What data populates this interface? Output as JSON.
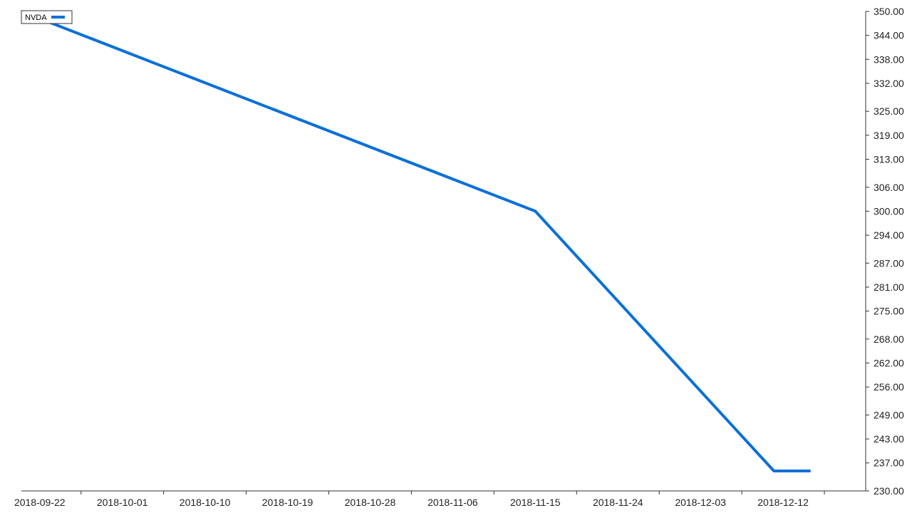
{
  "chart_data": {
    "type": "line",
    "series": [
      {
        "name": "NVDA",
        "color": "#0a70d8",
        "points": [
          {
            "x": "2018-09-20",
            "y": 350.0
          },
          {
            "x": "2018-11-15",
            "y": 300.0
          },
          {
            "x": "2018-12-11",
            "y": 235.0
          },
          {
            "x": "2018-12-15",
            "y": 235.0
          }
        ]
      }
    ],
    "x_range": [
      "2018-09-20",
      "2018-12-21"
    ],
    "x_ticks": [
      "2018-09-22",
      "2018-10-01",
      "2018-10-10",
      "2018-10-19",
      "2018-10-28",
      "2018-11-06",
      "2018-11-15",
      "2018-11-24",
      "2018-12-03",
      "2018-12-12"
    ],
    "y_range": [
      230.0,
      350.0
    ],
    "y_ticks": [
      "350.00",
      "344.00",
      "338.00",
      "332.00",
      "325.00",
      "319.00",
      "313.00",
      "306.00",
      "300.00",
      "294.00",
      "287.00",
      "281.00",
      "275.00",
      "268.00",
      "262.00",
      "256.00",
      "249.00",
      "243.00",
      "237.00",
      "230.00"
    ],
    "y_axis_position": "right",
    "grid": false,
    "legend": {
      "position": "top-left",
      "entries": [
        "NVDA"
      ]
    }
  }
}
